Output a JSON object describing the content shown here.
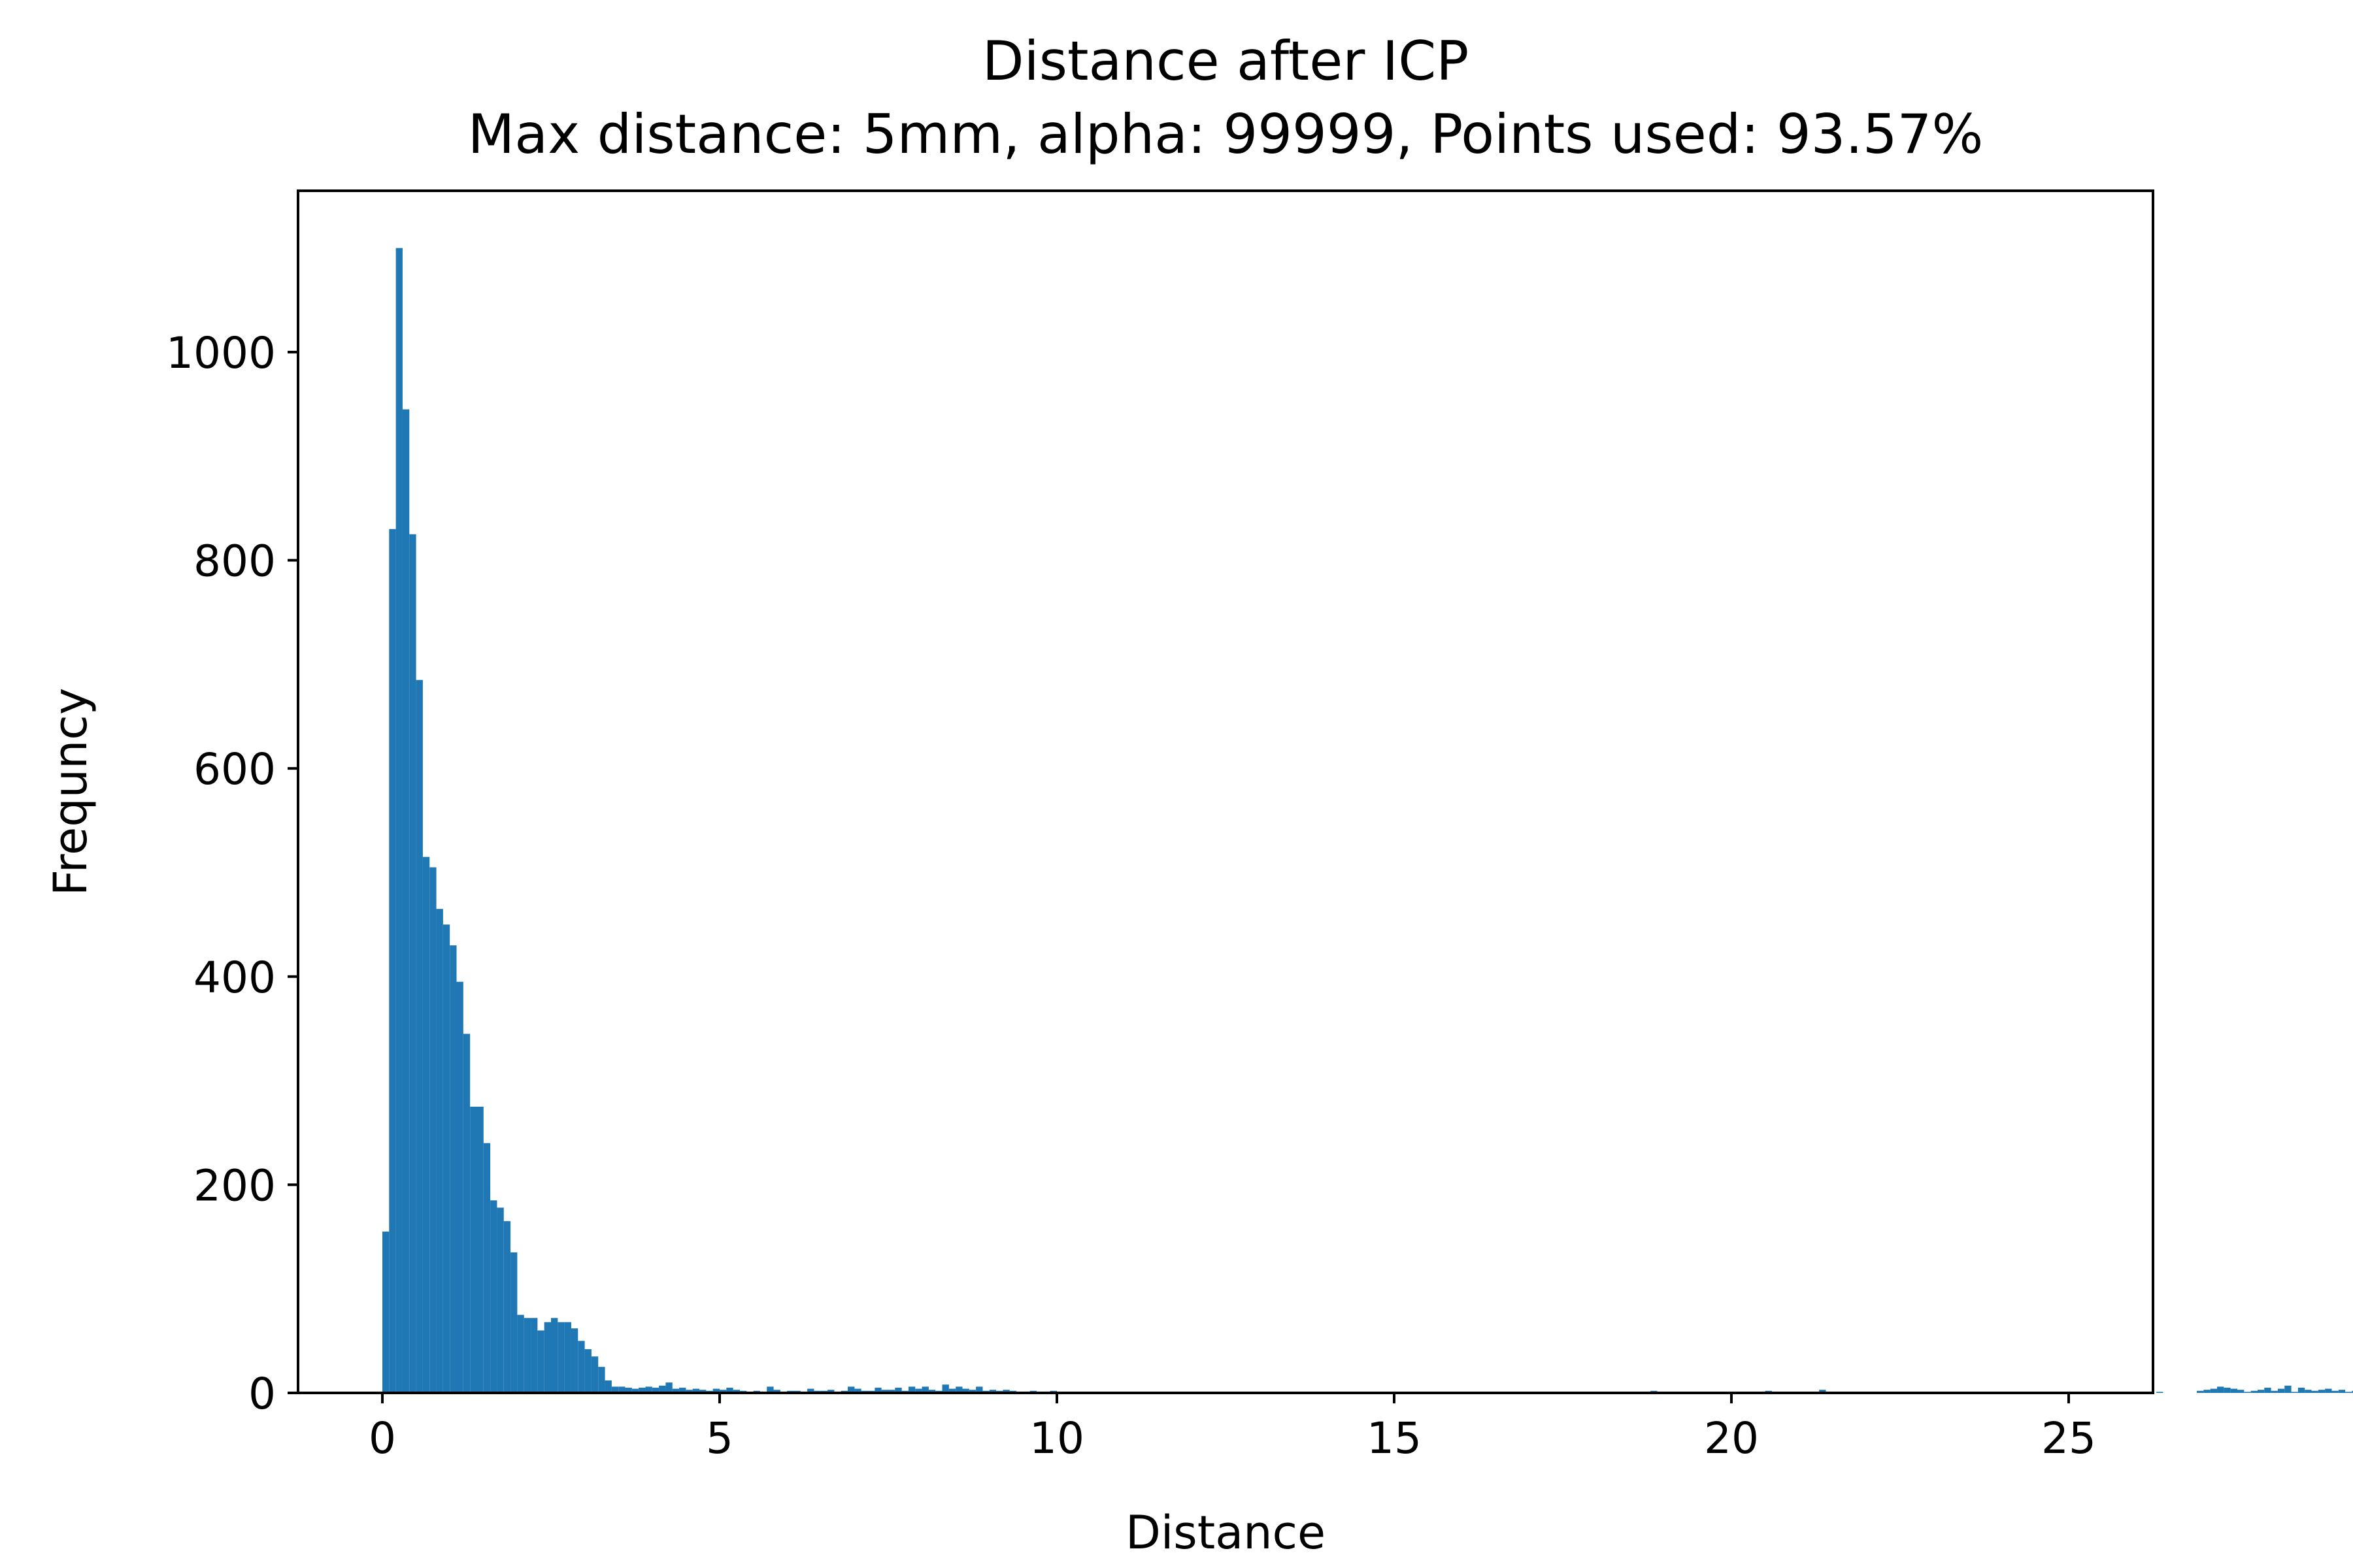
{
  "chart_data": {
    "type": "bar",
    "title": "Distance after ICP",
    "subtitle": "Max distance: 5mm, alpha: 99999, Points used: 93.57%",
    "xlabel": "Distance",
    "ylabel": "Frequncy",
    "xlim": [
      -1.25,
      26.25
    ],
    "ylim": [
      0,
      1155
    ],
    "xticks": [
      0,
      5,
      10,
      15,
      20,
      25
    ],
    "yticks": [
      0,
      200,
      400,
      600,
      800,
      1000
    ],
    "grid": false,
    "bar_color": "#1f77b4",
    "bins": {
      "start": 0,
      "width": 0.1,
      "counts": [
        155,
        830,
        1100,
        945,
        825,
        685,
        515,
        505,
        465,
        450,
        430,
        395,
        345,
        275,
        275,
        240,
        185,
        178,
        165,
        135,
        75,
        72,
        72,
        60,
        68,
        72,
        68,
        68,
        62,
        50,
        42,
        35,
        25,
        12,
        6,
        6,
        5,
        4,
        5,
        6,
        5,
        7,
        10,
        4,
        5,
        3,
        4,
        3,
        2,
        4,
        3,
        5,
        3,
        2,
        1,
        2,
        1,
        6,
        3,
        1,
        2,
        2,
        1,
        4,
        2,
        2,
        3,
        1,
        2,
        6,
        4,
        2,
        2,
        5,
        3,
        3,
        5,
        2,
        6,
        4,
        6,
        3,
        2,
        8,
        4,
        6,
        4,
        3,
        6,
        2,
        3,
        2,
        3,
        2,
        1,
        1,
        2,
        1,
        1,
        2,
        1,
        0,
        0,
        1,
        0,
        1,
        1,
        0,
        0,
        0,
        1,
        0,
        0,
        0,
        0,
        0,
        0,
        0,
        0,
        0,
        0,
        0,
        0,
        0,
        0,
        0,
        0,
        0,
        0,
        0,
        0,
        0,
        0,
        0,
        0,
        0,
        1,
        0,
        0,
        0,
        0,
        0,
        0,
        0,
        0,
        1,
        0,
        0,
        0,
        0,
        1,
        0,
        1,
        0,
        0,
        0,
        0,
        0,
        0,
        1,
        0,
        0,
        1,
        0,
        0,
        0,
        0,
        1,
        0,
        1,
        0,
        1,
        0,
        1,
        1,
        0,
        0,
        1,
        0,
        1,
        0,
        0,
        1,
        0,
        0,
        1,
        0,
        1,
        2,
        0,
        1,
        0,
        1,
        0,
        0,
        1,
        0,
        0,
        0,
        1,
        0,
        0,
        0,
        1,
        0,
        2,
        1,
        0,
        1,
        1,
        0,
        0,
        0,
        3,
        0,
        1,
        0,
        0,
        1,
        0,
        0,
        0,
        1,
        0,
        0,
        0,
        0,
        0,
        1,
        0,
        0,
        0,
        0,
        0,
        1,
        0,
        0,
        0,
        0,
        0,
        1,
        0,
        0,
        0,
        0,
        0,
        0,
        1,
        0,
        0,
        0,
        0,
        0,
        0,
        0,
        0,
        0,
        0,
        0,
        0,
        0,
        0,
        0,
        1,
        0,
        0,
        0,
        0,
        0,
        2,
        3,
        4,
        6,
        5,
        4,
        3,
        1,
        2,
        3,
        5,
        2,
        4,
        7,
        1,
        5,
        3,
        2,
        3,
        4,
        2,
        3,
        1,
        2,
        3,
        2,
        1,
        1,
        1,
        0,
        0,
        0,
        0,
        0,
        0,
        0,
        0,
        0,
        0,
        0,
        0,
        0,
        0,
        0,
        0,
        0,
        0,
        0,
        0,
        0,
        0,
        0,
        0,
        0,
        0,
        0,
        0,
        0,
        0,
        0,
        0,
        0,
        0,
        0,
        0,
        0,
        0,
        0,
        0,
        0,
        0,
        0,
        0,
        0,
        0,
        0,
        0,
        0,
        0,
        0,
        0,
        0,
        0,
        0,
        0,
        0,
        0,
        0,
        0,
        0,
        0,
        0,
        0,
        0,
        0,
        0,
        0,
        0,
        0,
        0,
        0,
        0,
        0,
        0,
        0,
        0,
        0,
        0,
        0,
        0,
        0,
        0,
        0,
        0,
        0,
        0,
        0,
        0,
        0,
        0,
        0,
        0,
        0,
        0,
        0,
        0,
        0,
        0,
        0,
        0,
        0,
        0,
        0,
        0,
        0,
        0,
        0,
        0,
        0,
        0,
        0,
        0,
        0,
        0,
        0,
        0,
        0,
        0,
        0,
        0,
        0,
        0,
        0,
        0,
        0,
        0,
        0,
        0,
        0,
        0,
        0,
        0,
        0,
        0,
        0,
        0,
        0,
        0,
        0,
        0,
        0,
        0,
        0,
        0,
        0,
        0,
        0,
        0,
        0,
        0,
        0,
        0,
        0,
        0,
        0,
        0,
        0,
        0,
        0,
        0,
        0,
        0,
        0,
        0,
        0,
        0,
        0,
        0,
        0,
        0,
        0,
        0,
        0,
        0,
        0,
        0,
        0,
        0,
        0,
        0,
        0,
        0,
        0,
        0,
        0,
        0,
        0,
        0,
        0,
        0,
        0,
        0,
        0,
        0,
        0,
        0,
        0,
        0,
        0,
        0,
        0,
        0,
        0,
        0,
        0,
        0,
        0,
        0,
        0,
        0,
        0,
        0,
        0,
        0,
        0,
        0,
        0,
        0,
        0,
        0,
        0,
        0,
        0,
        0,
        0,
        0,
        0,
        0,
        0,
        0,
        0,
        0,
        0,
        0,
        0,
        0,
        0,
        0,
        0,
        0,
        0,
        0,
        0,
        0,
        0,
        0,
        0,
        0,
        0,
        0,
        0,
        0,
        0,
        0,
        0,
        0,
        0,
        0,
        0,
        0,
        0,
        0,
        0,
        0,
        0,
        0,
        0,
        0,
        0,
        0,
        0
      ]
    }
  }
}
